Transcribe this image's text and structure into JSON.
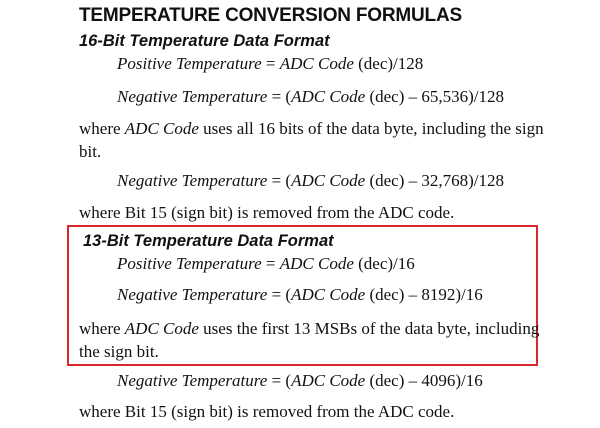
{
  "heading": "TEMPERATURE CONVERSION FORMULAS",
  "highlight_color": "#d8282b",
  "sections": [
    {
      "title": "16-Bit Temperature Data Format",
      "positive": {
        "label": "Positive Temperature",
        "eq": " = ",
        "code": "ADC Code",
        "rest": " (dec)/128"
      },
      "negative": {
        "label": "Negative Temperature",
        "eq": " = (",
        "code": "ADC Code",
        "rest": " (dec) – 65,536)/128"
      },
      "note": {
        "pre": "where ",
        "code": "ADC Code",
        "post": " uses all 16 bits of the data byte, including the sign bit."
      },
      "alt_negative": {
        "label": "Negative Temperature",
        "eq": " = (",
        "code": "ADC Code",
        "rest": " (dec) – 32,768)/128"
      },
      "alt_note": "where Bit 15 (sign bit) is removed from the ADC code."
    },
    {
      "title": "13-Bit Temperature Data Format",
      "positive": {
        "label": "Positive Temperature",
        "eq": " = ",
        "code": "ADC Code",
        "rest": " (dec)/16"
      },
      "negative": {
        "label": "Negative Temperature",
        "eq": " = (",
        "code": "ADC Code",
        "rest": " (dec) – 8192)/16"
      },
      "note": {
        "pre": "where ",
        "code": "ADC Code",
        "post": " uses the first 13 MSBs of the data byte, including the sign bit."
      },
      "alt_negative": {
        "label": "Negative Temperature",
        "eq": " = (",
        "code": "ADC Code",
        "rest": " (dec) – 4096)/16"
      },
      "alt_note": "where Bit 15 (sign bit) is removed from the ADC code."
    }
  ]
}
